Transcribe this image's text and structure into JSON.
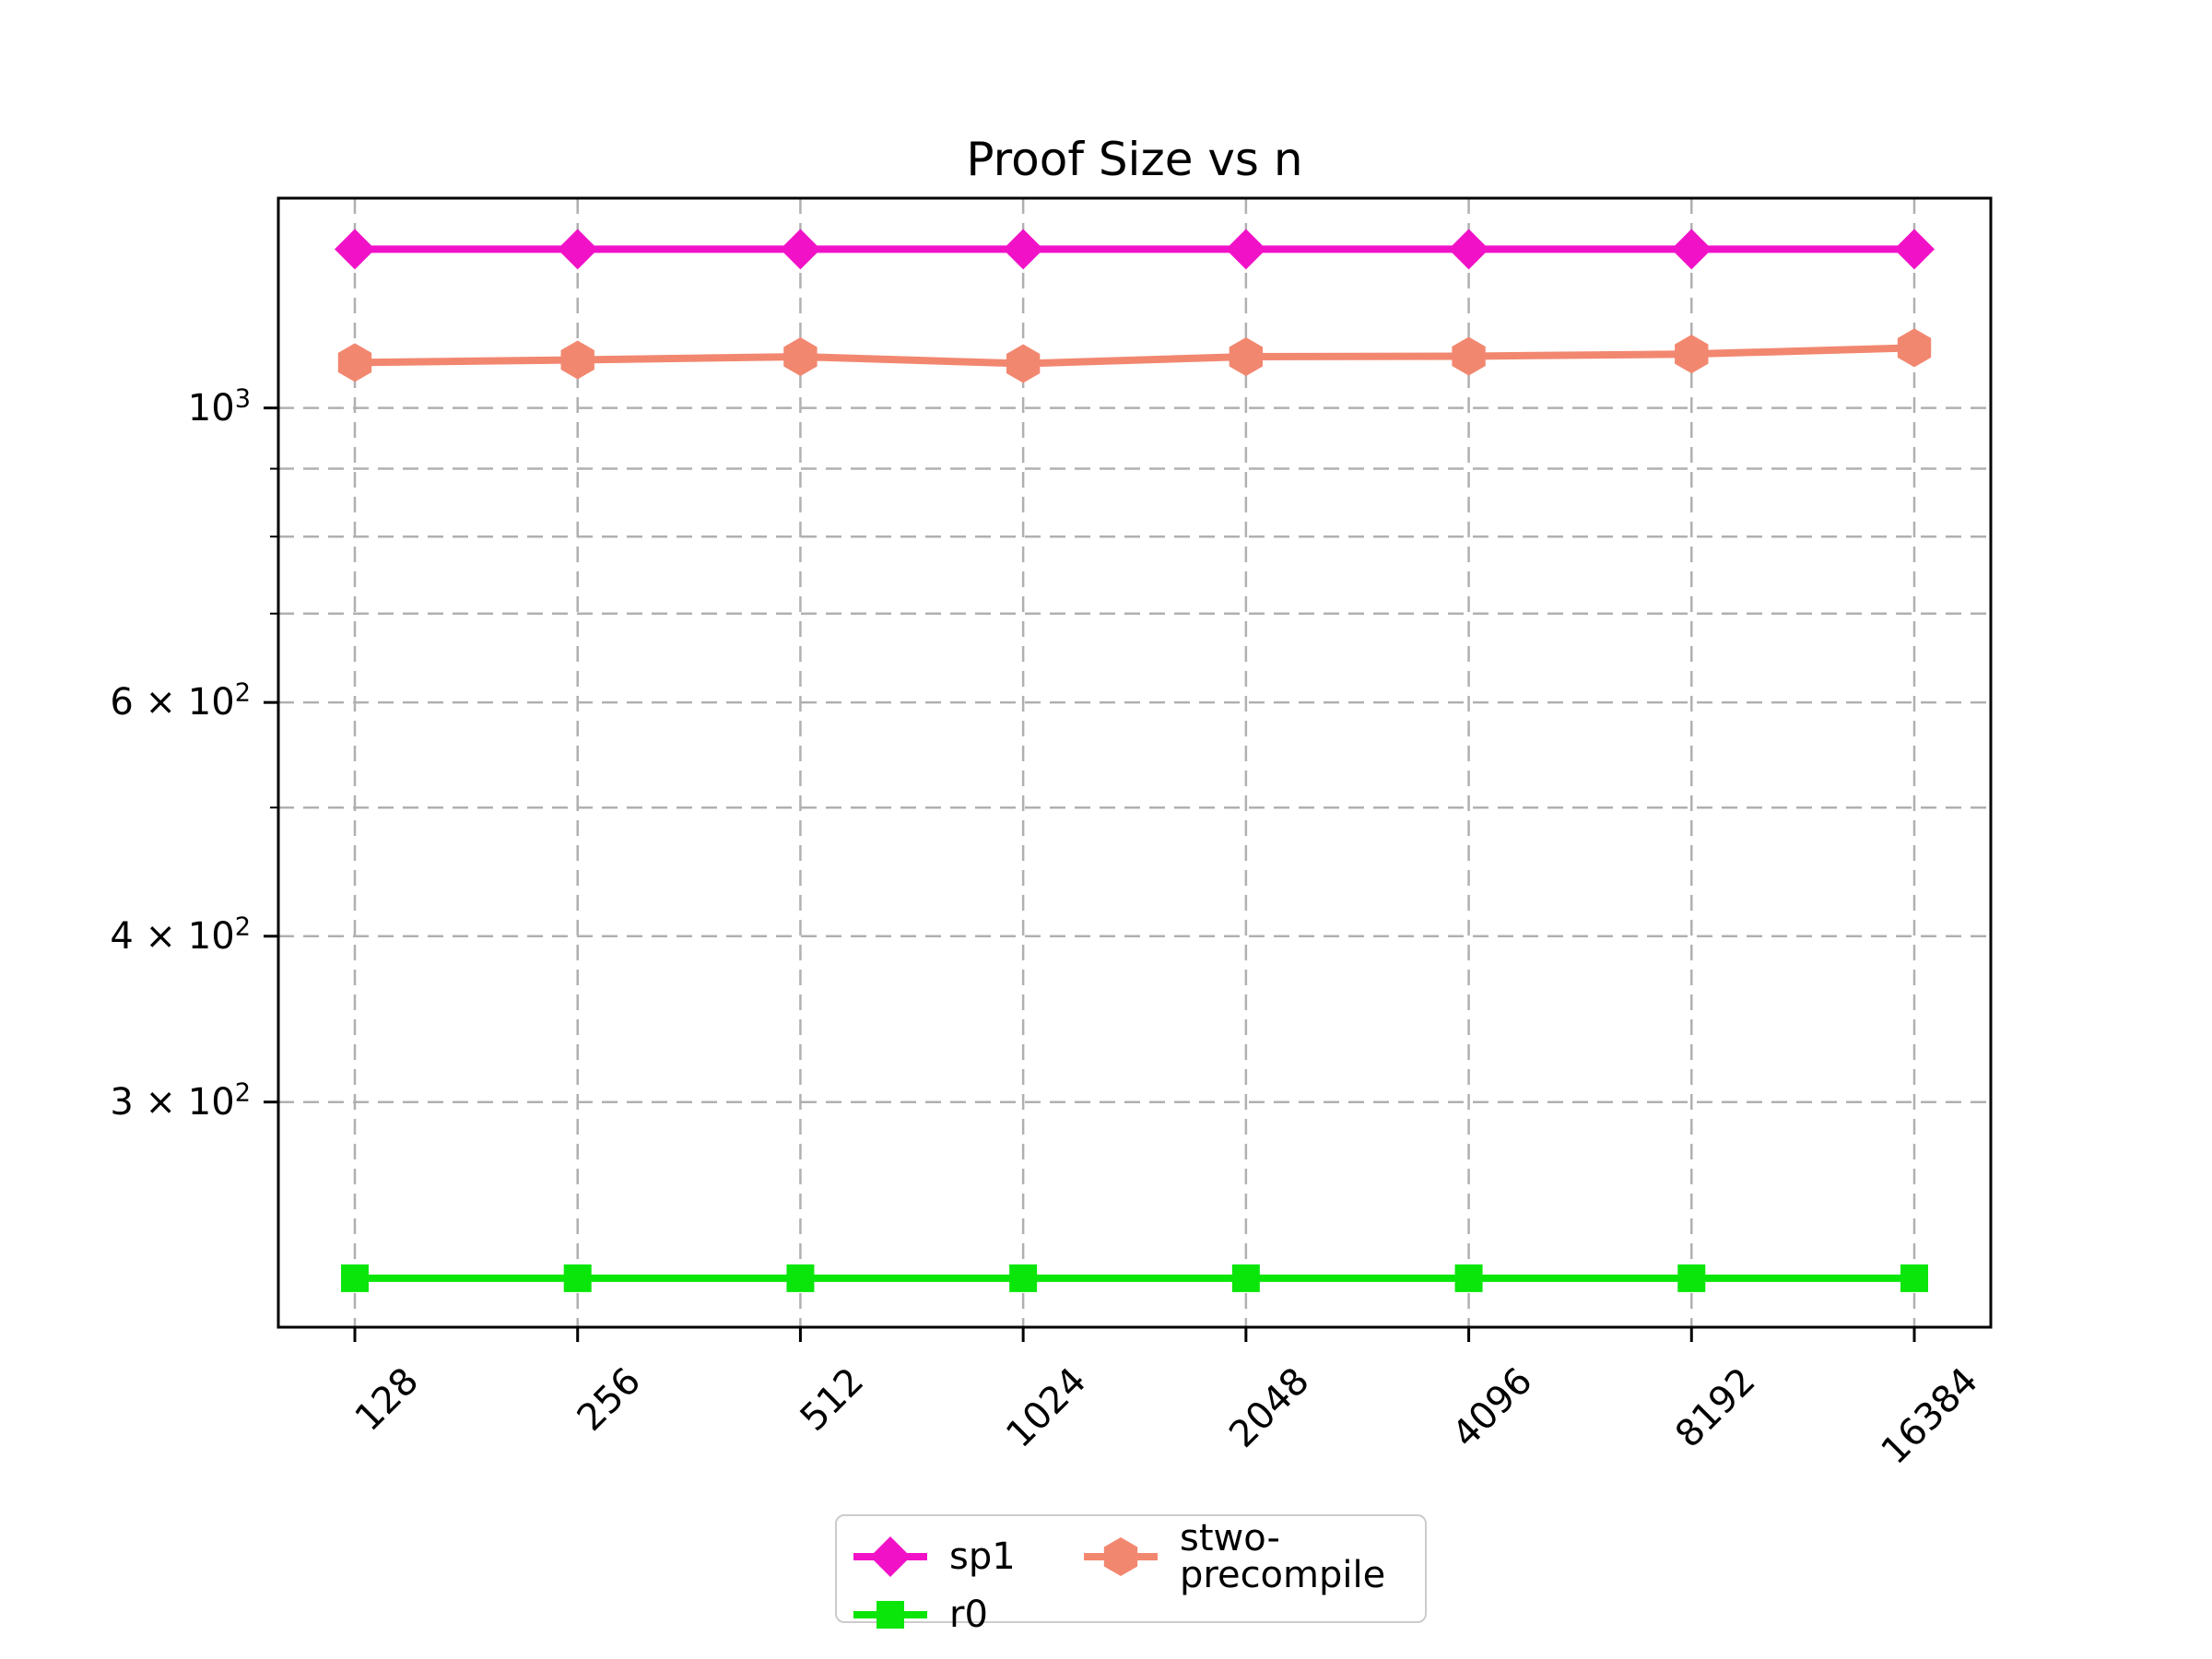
{
  "chart_data": {
    "type": "line",
    "title": "Proof Size vs n",
    "xlabel": "",
    "ylabel": "",
    "x_axis": {
      "scale": "log2",
      "categories": [
        "128",
        "256",
        "512",
        "1024",
        "2048",
        "4096",
        "8192",
        "16384"
      ],
      "tick_rotation_deg": 45
    },
    "y_axis": {
      "scale": "log10",
      "ylim": [
        203,
        1439
      ],
      "labeled_ticks": [
        {
          "value": 1000,
          "mantissa": "",
          "base": "10",
          "exponent": "3"
        },
        {
          "value": 600,
          "mantissa": "6",
          "base": "10",
          "exponent": "2"
        },
        {
          "value": 400,
          "mantissa": "4",
          "base": "10",
          "exponent": "2"
        },
        {
          "value": 300,
          "mantissa": "3",
          "base": "10",
          "exponent": "2"
        }
      ],
      "minor_unlabeled_ticks": [
        900,
        800,
        700,
        500
      ],
      "grid_values": [
        1000,
        900,
        800,
        700,
        600,
        500,
        400,
        300
      ]
    },
    "grid": {
      "show": true,
      "style": "dashed",
      "color": "#b0b0b0"
    },
    "legend": {
      "position": "lower center, below axes",
      "ncol": 2,
      "fill_order": "column-major: column1 = sp1, r0; column2 = stwo-precompile"
    },
    "series": [
      {
        "name": "sp1",
        "color": "#f112c8",
        "marker": "diamond",
        "x": [
          128,
          256,
          512,
          1024,
          2048,
          4096,
          8192,
          16384
        ],
        "values": [
          1317,
          1317,
          1317,
          1317,
          1317,
          1317,
          1317,
          1317
        ]
      },
      {
        "name": "r0",
        "color": "#0ae60a",
        "marker": "square",
        "x": [
          128,
          256,
          512,
          1024,
          2048,
          4096,
          8192,
          16384
        ],
        "values": [
          221,
          221,
          221,
          221,
          221,
          221,
          221,
          221
        ]
      },
      {
        "name": "stwo-precompile",
        "color": "#f28770",
        "marker": "hexagon",
        "x": [
          128,
          256,
          512,
          1024,
          2048,
          4096,
          8192,
          16384
        ],
        "values": [
          1082,
          1087,
          1093,
          1080,
          1093,
          1094,
          1098,
          1110
        ]
      }
    ],
    "frame_color": "#000000",
    "background_color": "#ffffff"
  }
}
